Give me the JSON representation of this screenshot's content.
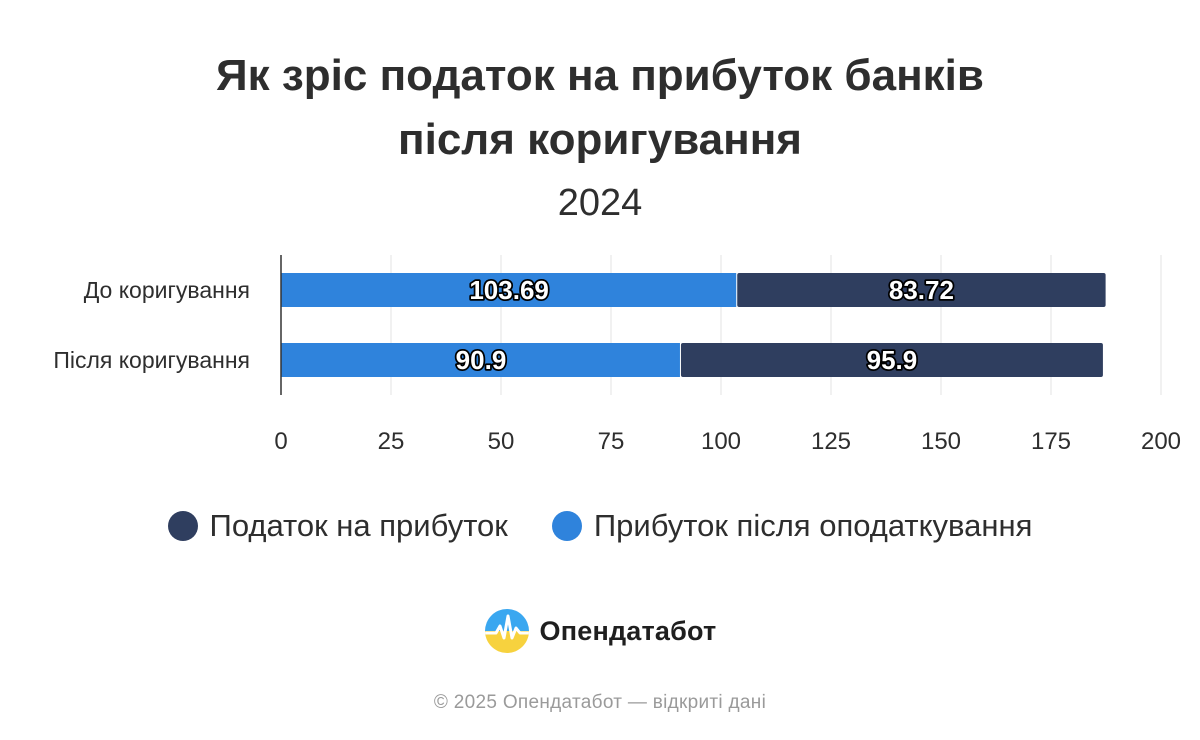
{
  "chart_data": {
    "type": "bar",
    "orientation": "horizontal",
    "stacked": true,
    "title": "Як зріс податок на прибуток банків після коригування",
    "title_lines": [
      "Як зріс податок на прибуток банків",
      "після коригування"
    ],
    "subtitle": "2024",
    "categories": [
      "До коригування",
      "Після коригування"
    ],
    "series": [
      {
        "name": "Прибуток після оподаткування",
        "color": "#2f83dc",
        "values": [
          103.69,
          90.9
        ]
      },
      {
        "name": "Податок на прибуток",
        "color": "#2f3e5f",
        "values": [
          83.72,
          95.9
        ]
      }
    ],
    "xlim": [
      0,
      200
    ],
    "xticks": [
      0,
      25,
      50,
      75,
      100,
      125,
      150,
      175,
      200
    ],
    "grid": true,
    "legend_placement": "bottom",
    "legend": [
      {
        "name": "Податок на прибуток",
        "color": "#2f3e5f"
      },
      {
        "name": "Прибуток після оподаткування",
        "color": "#2f83dc"
      }
    ]
  },
  "brand": {
    "name": "Опендатабот",
    "icon": "opendatabot-logo-icon"
  },
  "footer": "© 2025 Опендатабот — відкриті дані"
}
